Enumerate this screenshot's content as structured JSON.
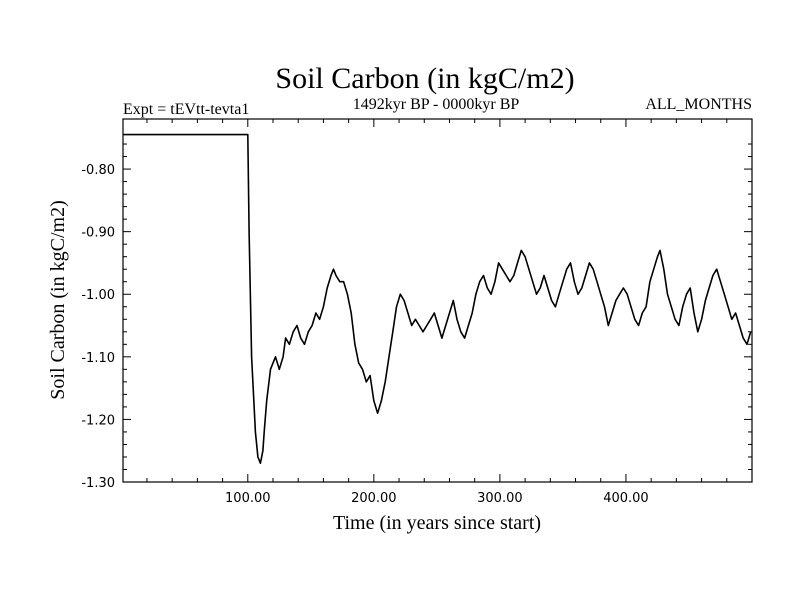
{
  "chart_data": {
    "type": "line",
    "title": "Soil Carbon (in kgC/m2)",
    "subtitle_left": "Expt = tEVtt-tevta1",
    "subtitle_center": "1492kyr BP - 0000kyr BP",
    "subtitle_right": "ALL_MONTHS",
    "xlabel": "Time (in years since start)",
    "ylabel": "Soil Carbon (in kgC/m2)",
    "xlim": [
      1,
      500
    ],
    "ylim": [
      -1.3,
      -0.72
    ],
    "x_ticks": [
      100,
      200,
      300,
      400
    ],
    "x_tick_labels": [
      "100.00",
      "200.00",
      "300.00",
      "400.00"
    ],
    "y_ticks": [
      -0.8,
      -0.9,
      -1.0,
      -1.1,
      -1.2,
      -1.3
    ],
    "y_tick_labels": [
      "-0.80",
      "-0.90",
      "-1.00",
      "-1.10",
      "-1.20",
      "-1.30"
    ],
    "grid": false,
    "series": [
      {
        "name": "Soil Carbon",
        "color": "#000000",
        "x": [
          1,
          100,
          101,
          103,
          106,
          108,
          110,
          112,
          113,
          115,
          118,
          122,
          125,
          128,
          130,
          133,
          136,
          139,
          142,
          145,
          148,
          151,
          154,
          157,
          160,
          163,
          166,
          168,
          170,
          173,
          176,
          179,
          182,
          185,
          188,
          191,
          194,
          197,
          200,
          203,
          206,
          209,
          212,
          215,
          218,
          221,
          224,
          227,
          230,
          233,
          236,
          239,
          242,
          245,
          248,
          251,
          254,
          257,
          260,
          263,
          266,
          269,
          272,
          275,
          278,
          281,
          284,
          287,
          290,
          293,
          296,
          299,
          302,
          305,
          308,
          311,
          314,
          317,
          320,
          323,
          326,
          329,
          332,
          335,
          338,
          341,
          344,
          347,
          350,
          353,
          356,
          359,
          362,
          365,
          368,
          371,
          374,
          377,
          380,
          383,
          386,
          389,
          392,
          395,
          398,
          401,
          404,
          407,
          410,
          413,
          416,
          419,
          422,
          425,
          427,
          430,
          433,
          436,
          439,
          442,
          445,
          448,
          451,
          454,
          457,
          460,
          463,
          466,
          469,
          472,
          475,
          478,
          481,
          484,
          487,
          490,
          493,
          496,
          499
        ],
        "values": [
          -0.745,
          -0.745,
          -0.9,
          -1.1,
          -1.22,
          -1.26,
          -1.27,
          -1.25,
          -1.22,
          -1.17,
          -1.12,
          -1.1,
          -1.12,
          -1.1,
          -1.07,
          -1.08,
          -1.06,
          -1.05,
          -1.07,
          -1.08,
          -1.06,
          -1.05,
          -1.03,
          -1.04,
          -1.02,
          -0.99,
          -0.97,
          -0.96,
          -0.97,
          -0.98,
          -0.98,
          -1.0,
          -1.03,
          -1.08,
          -1.11,
          -1.12,
          -1.14,
          -1.13,
          -1.17,
          -1.19,
          -1.17,
          -1.14,
          -1.1,
          -1.06,
          -1.02,
          -1.0,
          -1.01,
          -1.03,
          -1.05,
          -1.04,
          -1.05,
          -1.06,
          -1.05,
          -1.04,
          -1.03,
          -1.05,
          -1.07,
          -1.05,
          -1.03,
          -1.01,
          -1.04,
          -1.06,
          -1.07,
          -1.05,
          -1.03,
          -1.0,
          -0.98,
          -0.97,
          -0.99,
          -1.0,
          -0.98,
          -0.95,
          -0.96,
          -0.97,
          -0.98,
          -0.97,
          -0.95,
          -0.93,
          -0.94,
          -0.96,
          -0.98,
          -1.0,
          -0.99,
          -0.97,
          -0.99,
          -1.01,
          -1.02,
          -1.0,
          -0.98,
          -0.96,
          -0.95,
          -0.98,
          -1.0,
          -0.99,
          -0.97,
          -0.95,
          -0.96,
          -0.98,
          -1.0,
          -1.02,
          -1.05,
          -1.03,
          -1.01,
          -1.0,
          -0.99,
          -1.0,
          -1.02,
          -1.04,
          -1.05,
          -1.03,
          -1.02,
          -0.98,
          -0.96,
          -0.94,
          -0.93,
          -0.96,
          -1.0,
          -1.02,
          -1.04,
          -1.05,
          -1.02,
          -1.0,
          -0.99,
          -1.03,
          -1.06,
          -1.04,
          -1.01,
          -0.99,
          -0.97,
          -0.96,
          -0.98,
          -1.0,
          -1.02,
          -1.04,
          -1.03,
          -1.05,
          -1.07,
          -1.08,
          -1.06
        ]
      }
    ]
  }
}
